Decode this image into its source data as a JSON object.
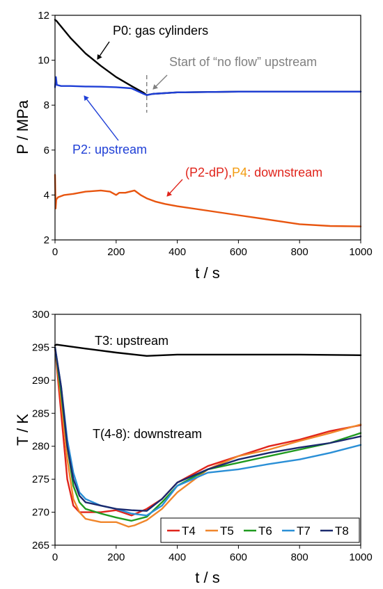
{
  "chart_data": [
    {
      "type": "line",
      "xlabel": "t / s",
      "ylabel": "P / MPa",
      "xlim": [
        0,
        1000
      ],
      "ylim": [
        2,
        12
      ],
      "xticks": [
        0,
        200,
        400,
        600,
        800,
        1000
      ],
      "yticks": [
        2,
        4,
        6,
        8,
        10,
        12
      ],
      "grid": false,
      "series": [
        {
          "key": "P0",
          "color": "#000000",
          "x": [
            0,
            5,
            50,
            100,
            150,
            200,
            250,
            290,
            300,
            320,
            400,
            600,
            800,
            1000
          ],
          "values": [
            11.8,
            11.75,
            11.0,
            10.3,
            9.75,
            9.25,
            8.85,
            8.55,
            8.45,
            8.5,
            8.57,
            8.6,
            8.6,
            8.6
          ]
        },
        {
          "key": "P2",
          "color": "#1f3fd6",
          "x": [
            0,
            3,
            6,
            20,
            50,
            100,
            150,
            200,
            250,
            290,
            300,
            320,
            400,
            600,
            800,
            1000
          ],
          "values": [
            8.8,
            9.25,
            8.9,
            8.85,
            8.85,
            8.83,
            8.82,
            8.8,
            8.75,
            8.5,
            8.45,
            8.5,
            8.57,
            8.6,
            8.6,
            8.6
          ]
        },
        {
          "key": "P4",
          "color": "#e8550f",
          "x": [
            0,
            2,
            4,
            10,
            30,
            60,
            100,
            150,
            180,
            200,
            210,
            230,
            260,
            280,
            300,
            330,
            360,
            400,
            500,
            600,
            700,
            800,
            900,
            1000
          ],
          "values": [
            4.9,
            3.4,
            3.8,
            3.9,
            4.0,
            4.05,
            4.15,
            4.2,
            4.15,
            4.0,
            4.1,
            4.1,
            4.2,
            4.0,
            3.85,
            3.7,
            3.6,
            3.5,
            3.3,
            3.1,
            2.9,
            2.7,
            2.62,
            2.6
          ]
        }
      ],
      "annotations": {
        "p0": "P0: gas cylinders",
        "no_flow": "Start of “no flow” upstream",
        "p2": "P2: upstream",
        "p4_part1": "(P2-dP),",
        "p4_part2": "P4",
        "p4_part3": ": downstream",
        "no_flow_x": 300
      },
      "annotation_colors": {
        "p0": "#000000",
        "no_flow": "#808080",
        "p2": "#1f3fd6",
        "p4": "#e0241b",
        "p4_orange": "#f39c12"
      }
    },
    {
      "type": "line",
      "xlabel": "t / s",
      "ylabel": "T / K",
      "xlim": [
        0,
        1000
      ],
      "ylim": [
        265,
        300
      ],
      "xticks": [
        0,
        200,
        400,
        600,
        800,
        1000
      ],
      "yticks": [
        265,
        270,
        275,
        280,
        285,
        290,
        295,
        300
      ],
      "grid": false,
      "series": [
        {
          "key": "T3",
          "color": "#000000",
          "x": [
            0,
            5,
            100,
            200,
            300,
            400,
            600,
            800,
            1000
          ],
          "values": [
            295.3,
            295.4,
            294.8,
            294.2,
            293.7,
            293.9,
            293.9,
            293.9,
            293.8
          ]
        },
        {
          "name": "T4",
          "color": "#e0241b",
          "x": [
            0,
            20,
            40,
            60,
            80,
            100,
            150,
            200,
            250,
            300,
            350,
            400,
            500,
            600,
            700,
            800,
            900,
            1000
          ],
          "values": [
            295,
            285,
            275,
            271,
            270,
            270,
            270,
            270.3,
            269.5,
            270.5,
            272,
            274.5,
            277,
            278.5,
            280,
            281,
            282.3,
            283.2
          ]
        },
        {
          "name": "T5",
          "color": "#f0862b",
          "x": [
            0,
            20,
            40,
            60,
            80,
            100,
            150,
            200,
            240,
            260,
            300,
            350,
            400,
            500,
            600,
            700,
            800,
            900,
            1000
          ],
          "values": [
            295,
            287,
            278,
            272,
            270,
            269,
            268.5,
            268.5,
            267.8,
            268,
            268.8,
            270.5,
            273,
            276.5,
            278.5,
            279.5,
            280.8,
            282,
            283.3
          ]
        },
        {
          "name": "T6",
          "color": "#1f9a1f",
          "x": [
            0,
            20,
            40,
            60,
            80,
            100,
            150,
            200,
            250,
            300,
            350,
            400,
            500,
            600,
            700,
            800,
            900,
            1000
          ],
          "values": [
            295,
            288,
            280,
            274,
            271.5,
            270.5,
            269.8,
            269.2,
            268.7,
            269.3,
            271.5,
            274,
            276.5,
            277.5,
            278.5,
            279.5,
            280.5,
            282
          ]
        },
        {
          "name": "T7",
          "color": "#2a8fd6",
          "x": [
            0,
            20,
            40,
            60,
            80,
            100,
            150,
            200,
            250,
            300,
            350,
            400,
            500,
            600,
            700,
            800,
            900,
            1000
          ],
          "values": [
            295,
            289,
            281,
            276,
            273,
            272,
            271,
            270.5,
            269.8,
            269.5,
            271,
            274,
            276,
            276.5,
            277.3,
            278,
            279,
            280.2
          ]
        },
        {
          "name": "T8",
          "color": "#1b2a6e",
          "x": [
            0,
            20,
            40,
            60,
            80,
            100,
            150,
            200,
            250,
            300,
            350,
            400,
            500,
            600,
            700,
            800,
            900,
            1000
          ],
          "values": [
            295,
            289,
            280,
            275,
            272.5,
            271.5,
            271,
            270.5,
            270.3,
            270.2,
            272,
            274.5,
            276.5,
            278,
            279,
            279.8,
            280.5,
            281.5
          ]
        }
      ],
      "annotations": {
        "t3": "T3: upstream",
        "t48": "T(4-8): downstream"
      },
      "legend": {
        "position": "bottom-right"
      }
    }
  ]
}
